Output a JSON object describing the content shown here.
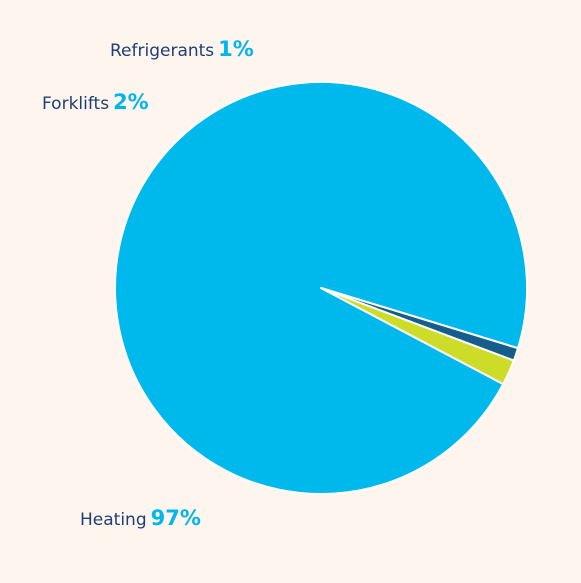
{
  "chart_data": {
    "type": "pie",
    "title": "",
    "slices": [
      {
        "label": "Heating",
        "value": 97,
        "value_text": "97%",
        "color": "#00b9ec"
      },
      {
        "label": "Forklifts",
        "value": 2,
        "value_text": "2%",
        "color": "#cddc28"
      },
      {
        "label": "Refrigerants",
        "value": 1,
        "value_text": "1%",
        "color": "#155e8c"
      }
    ],
    "start_angle_deg": -17,
    "direction": "counterclockwise",
    "slice_border_color": "#ffffff",
    "legend": "none",
    "background_color": "#fdf5ee"
  }
}
